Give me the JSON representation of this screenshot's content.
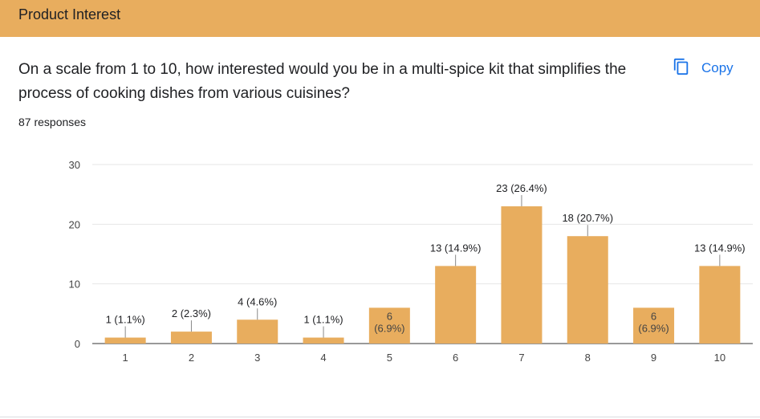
{
  "header": {
    "title": "Product Interest"
  },
  "question": {
    "text": "On a scale from 1 to 10, how interested would you be in a multi-spice kit that simplifies the process of cooking dishes from various cuisines?",
    "responses": "87 responses"
  },
  "copy": {
    "label": "Copy",
    "icon": "copy-icon"
  },
  "colors": {
    "bar": "#e8ad5e",
    "header": "#e8ad5e",
    "accent": "#1a73e8"
  },
  "chart_data": {
    "type": "bar",
    "categories": [
      "1",
      "2",
      "3",
      "4",
      "5",
      "6",
      "7",
      "8",
      "9",
      "10"
    ],
    "values": [
      1,
      2,
      4,
      1,
      6,
      13,
      23,
      18,
      6,
      13
    ],
    "percents": [
      "1.1%",
      "2.3%",
      "4.6%",
      "1.1%",
      "6.9%",
      "14.9%",
      "26.4%",
      "20.7%",
      "6.9%",
      "14.9%"
    ],
    "data_labels": [
      "1 (1.1%)",
      "2 (2.3%)",
      "4 (4.6%)",
      "1 (1.1%)",
      "6|(6.9%)",
      "13 (14.9%)",
      "23 (26.4%)",
      "18 (20.7%)",
      "6|(6.9%)",
      "13 (14.9%)"
    ],
    "yticks": [
      "0",
      "10",
      "20",
      "30"
    ],
    "ylim": [
      0,
      30
    ],
    "grid": true,
    "legend": "none"
  }
}
